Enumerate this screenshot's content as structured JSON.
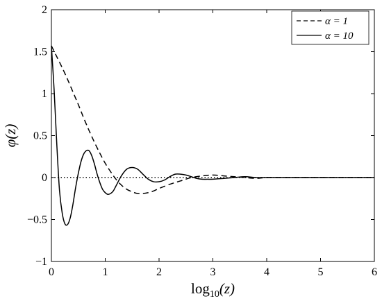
{
  "chart_data": {
    "type": "line",
    "title": "",
    "xlabel": "log10(z)",
    "xlabel_parts": {
      "base": "log",
      "sub": "10",
      "arg": "(z)"
    },
    "ylabel": "φ(z)",
    "xlim": [
      0,
      6
    ],
    "ylim": [
      -1,
      2
    ],
    "xticks": [
      "0",
      "1",
      "2",
      "3",
      "4",
      "5",
      "6"
    ],
    "yticks": [
      "−1",
      "−0.5",
      "0",
      "0.5",
      "1",
      "1.5",
      "2"
    ],
    "ytick_values": [
      -1,
      -0.5,
      0,
      0.5,
      1,
      1.5,
      2
    ],
    "xtick_values": [
      0,
      1,
      2,
      3,
      4,
      5,
      6
    ],
    "grid": false,
    "legend_position": "top-right",
    "reference_line": {
      "y": 0,
      "style": "dotted"
    },
    "series": [
      {
        "name": "α = 1",
        "style": "dashed",
        "color": "#000000",
        "x": [
          0,
          0.1,
          0.2,
          0.3,
          0.4,
          0.5,
          0.6,
          0.7,
          0.8,
          0.9,
          1.0,
          1.1,
          1.2,
          1.3,
          1.4,
          1.5,
          1.6,
          1.7,
          1.8,
          1.9,
          2.0,
          2.2,
          2.4,
          2.6,
          2.8,
          3.0,
          3.2,
          3.4,
          3.6,
          3.8,
          4.0,
          4.3,
          4.6,
          5.0,
          5.5,
          6.0
        ],
        "y": [
          1.57,
          1.44,
          1.31,
          1.17,
          1.02,
          0.87,
          0.71,
          0.56,
          0.42,
          0.29,
          0.17,
          0.07,
          -0.02,
          -0.09,
          -0.14,
          -0.17,
          -0.19,
          -0.19,
          -0.18,
          -0.16,
          -0.13,
          -0.08,
          -0.04,
          0.0,
          0.02,
          0.03,
          0.02,
          0.01,
          0.0,
          -0.01,
          0.0,
          0.0,
          0.0,
          0.0,
          0.0,
          0.0
        ]
      },
      {
        "name": "α = 10",
        "style": "solid",
        "color": "#000000",
        "x": [
          0,
          0.05,
          0.1,
          0.15,
          0.2,
          0.25,
          0.3,
          0.35,
          0.4,
          0.45,
          0.5,
          0.55,
          0.6,
          0.65,
          0.7,
          0.75,
          0.8,
          0.85,
          0.9,
          0.95,
          1.0,
          1.05,
          1.1,
          1.15,
          1.2,
          1.3,
          1.4,
          1.5,
          1.6,
          1.7,
          1.8,
          1.9,
          2.0,
          2.1,
          2.2,
          2.3,
          2.4,
          2.5,
          2.6,
          2.7,
          2.8,
          2.9,
          3.0,
          3.2,
          3.4,
          3.6,
          3.8,
          4.0,
          4.5,
          5.0,
          5.5,
          6.0
        ],
        "y": [
          1.57,
          1.05,
          0.4,
          -0.15,
          -0.42,
          -0.55,
          -0.56,
          -0.48,
          -0.32,
          -0.12,
          0.05,
          0.19,
          0.28,
          0.32,
          0.32,
          0.26,
          0.16,
          0.04,
          -0.06,
          -0.14,
          -0.18,
          -0.2,
          -0.19,
          -0.16,
          -0.1,
          0.02,
          0.1,
          0.12,
          0.1,
          0.04,
          -0.02,
          -0.05,
          -0.05,
          -0.03,
          0.01,
          0.04,
          0.04,
          0.03,
          0.01,
          -0.01,
          -0.02,
          -0.02,
          -0.02,
          -0.01,
          0.0,
          0.01,
          0.0,
          0.0,
          0.0,
          0.0,
          0.0,
          0.0
        ]
      }
    ]
  }
}
